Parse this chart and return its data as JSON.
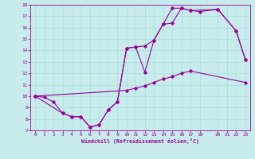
{
  "xlabel": "Windchill (Refroidissement éolien,°C)",
  "bg_color": "#c8ecec",
  "line_color": "#990099",
  "grid_color": "#aadddd",
  "xlim": [
    -0.5,
    23.5
  ],
  "ylim": [
    7,
    18
  ],
  "xticks": [
    0,
    1,
    2,
    3,
    4,
    5,
    6,
    7,
    8,
    9,
    10,
    11,
    12,
    13,
    14,
    15,
    16,
    17,
    18,
    20,
    21,
    22,
    23
  ],
  "yticks": [
    7,
    8,
    9,
    10,
    11,
    12,
    13,
    14,
    15,
    16,
    17,
    18
  ],
  "line1_x": [
    0,
    1,
    2,
    3,
    4,
    5,
    6,
    7,
    8,
    9,
    10,
    11,
    12,
    13,
    14,
    15,
    16,
    17,
    20,
    22,
    23
  ],
  "line1_y": [
    10,
    9.9,
    9.5,
    8.5,
    8.2,
    8.2,
    7.3,
    7.5,
    8.8,
    9.5,
    14.2,
    14.3,
    12.1,
    14.9,
    16.3,
    16.4,
    17.7,
    17.5,
    17.6,
    15.7,
    13.2
  ],
  "line2_x": [
    0,
    10,
    11,
    12,
    13,
    14,
    15,
    16,
    17,
    23
  ],
  "line2_y": [
    10,
    10.5,
    10.7,
    10.9,
    11.2,
    11.5,
    11.7,
    12.0,
    12.2,
    11.2
  ],
  "line3_x": [
    0,
    3,
    4,
    5,
    6,
    7,
    8,
    9,
    10,
    11,
    12,
    13,
    14,
    15,
    16,
    17,
    18,
    20,
    22,
    23
  ],
  "line3_y": [
    10,
    8.5,
    8.2,
    8.2,
    7.3,
    7.5,
    8.8,
    9.5,
    14.2,
    14.3,
    14.4,
    14.9,
    16.3,
    17.7,
    17.7,
    17.5,
    17.4,
    17.6,
    15.7,
    13.2
  ]
}
